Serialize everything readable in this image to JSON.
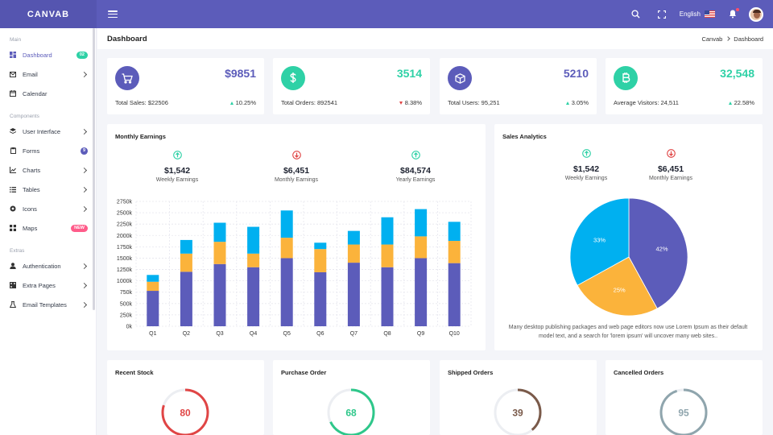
{
  "brand": "CANVAB",
  "topbar": {
    "language": "English"
  },
  "sidebar": {
    "sections": [
      {
        "title": "Main",
        "items": [
          {
            "label": "Dashboard",
            "badge": "02",
            "badge_color": "green",
            "active": true,
            "icon": "dashboard-icon"
          },
          {
            "label": "Email",
            "chevron": true,
            "icon": "mail-icon"
          },
          {
            "label": "Calendar",
            "icon": "calendar-icon"
          }
        ]
      },
      {
        "title": "Components",
        "items": [
          {
            "label": "User Interface",
            "chevron": true,
            "icon": "layers-icon"
          },
          {
            "label": "Forms",
            "badge": "9",
            "badge_color": "purple",
            "icon": "clipboard-icon"
          },
          {
            "label": "Charts",
            "chevron": true,
            "icon": "chart-line-icon"
          },
          {
            "label": "Tables",
            "chevron": true,
            "icon": "list-icon"
          },
          {
            "label": "Icons",
            "chevron": true,
            "icon": "circle-icon"
          },
          {
            "label": "Maps",
            "badge": "NEW",
            "badge_color": "pink",
            "icon": "map-icon"
          }
        ]
      },
      {
        "title": "Extras",
        "items": [
          {
            "label": "Authentication",
            "chevron": true,
            "icon": "user-icon"
          },
          {
            "label": "Extra Pages",
            "chevron": true,
            "icon": "pages-icon"
          },
          {
            "label": "Email Templates",
            "chevron": true,
            "icon": "flask-icon"
          }
        ]
      }
    ]
  },
  "page": {
    "title": "Dashboard",
    "breadcrumb": [
      "Canvab",
      "Dashboard"
    ]
  },
  "stats": [
    {
      "value": "$9851",
      "label": "Total Sales: $22506",
      "change": "10.25%",
      "direction": "up",
      "icon": "cart-icon",
      "icon_bg": "#5c5cba",
      "value_color": "#5c5cba"
    },
    {
      "value": "3514",
      "label": "Total Orders: 892541",
      "change": "8.38%",
      "direction": "down",
      "icon": "dollar-icon",
      "icon_bg": "#2ed1a6",
      "value_color": "#2ed1a6"
    },
    {
      "value": "5210",
      "label": "Total Users: 95,251",
      "change": "3.05%",
      "direction": "up",
      "icon": "cube-icon",
      "icon_bg": "#5c5cba",
      "value_color": "#5c5cba"
    },
    {
      "value": "32,548",
      "label": "Average Visitors: 24,511",
      "change": "22.58%",
      "direction": "up",
      "icon": "bitcoin-icon",
      "icon_bg": "#2ed1a6",
      "value_color": "#2ed1a6"
    }
  ],
  "monthly_earnings": {
    "title": "Monthly Earnings",
    "summary": [
      {
        "value": "$1,542",
        "label": "Weekly Earnings",
        "direction": "up"
      },
      {
        "value": "$6,451",
        "label": "Monthly Earnings",
        "direction": "down"
      },
      {
        "value": "$84,574",
        "label": "Yearly Earnings",
        "direction": "up"
      }
    ]
  },
  "sales_analytics": {
    "title": "Sales Analytics",
    "summary": [
      {
        "value": "$1,542",
        "label": "Weekly Earnings",
        "direction": "up"
      },
      {
        "value": "$6,451",
        "label": "Monthly Earnings",
        "direction": "down"
      }
    ],
    "description": "Many desktop publishing packages and web page editors now use Lorem Ipsum as their default model text, and a search for 'lorem ipsum' will uncover many web sites.."
  },
  "bottom_cards": [
    {
      "title": "Recent Stock",
      "value": "80",
      "percent": 80,
      "color": "#e04545"
    },
    {
      "title": "Purchase Order",
      "value": "68",
      "percent": 68,
      "color": "#2ec78a"
    },
    {
      "title": "Shipped Orders",
      "value": "39",
      "percent": 39,
      "color": "#7a5a4a"
    },
    {
      "title": "Cancelled Orders",
      "value": "95",
      "percent": 95,
      "color": "#8fa5ad"
    }
  ],
  "colors": {
    "purple": "#5c5cba",
    "orange": "#fbb33b",
    "cyan": "#00b0f0",
    "green": "#2ed1a6",
    "red": "#e04545"
  },
  "chart_data": [
    {
      "type": "bar",
      "stacked": true,
      "categories": [
        "Q1",
        "Q2",
        "Q3",
        "Q4",
        "Q5",
        "Q6",
        "Q7",
        "Q8",
        "Q9",
        "Q10"
      ],
      "series": [
        {
          "values": [
            780,
            1200,
            1370,
            1300,
            1500,
            1190,
            1400,
            1300,
            1500,
            1390
          ],
          "color": "#5c5cba"
        },
        {
          "values": [
            200,
            400,
            490,
            300,
            450,
            510,
            400,
            500,
            480,
            490
          ],
          "color": "#fbb33b"
        },
        {
          "values": [
            150,
            300,
            420,
            590,
            600,
            140,
            300,
            600,
            600,
            420
          ],
          "color": "#00b0f0"
        }
      ],
      "ylim": [
        0,
        2750
      ],
      "yticks": [
        "0k",
        "250k",
        "500k",
        "750k",
        "1000k",
        "1250k",
        "1500k",
        "1750k",
        "2000k",
        "2250k",
        "2500k",
        "2750k"
      ],
      "grid": true
    },
    {
      "type": "pie",
      "labels": [
        "42%",
        "25%",
        "33%"
      ],
      "values": [
        42,
        25,
        33
      ],
      "colors": [
        "#5c5cba",
        "#fbb33b",
        "#00b0f0"
      ]
    }
  ]
}
